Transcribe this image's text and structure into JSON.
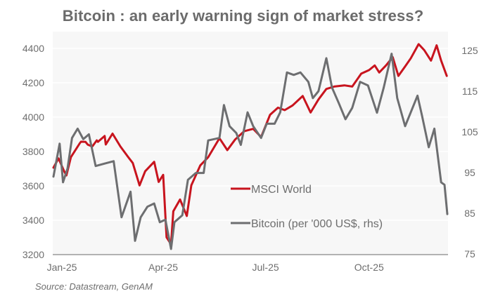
{
  "chart_data": {
    "type": "line",
    "title": "Bitcoin : an early warning sign of market stress?",
    "source": "Source: Datastream, GenAM",
    "xlabel": "",
    "ylabel_left": "",
    "ylabel_right": "",
    "x_ticks": [
      "Jan-25",
      "Apr-25",
      "Jul-25",
      "Oct-25"
    ],
    "x_tick_dates": [
      "2025-01-01",
      "2025-04-01",
      "2025-07-01",
      "2025-10-01"
    ],
    "xlim": [
      "2024-12-24",
      "2025-12-10"
    ],
    "y_left": {
      "ylim": [
        3200,
        4500
      ],
      "ticks": [
        "3200",
        "3400",
        "3600",
        "3800",
        "4000",
        "4200",
        "4400"
      ],
      "tick_values": [
        3200,
        3400,
        3600,
        3800,
        4000,
        4200,
        4400
      ]
    },
    "y_right": {
      "ylim": [
        75,
        127
      ],
      "ticks": [
        "75",
        "85",
        "95",
        "105",
        "115",
        "125"
      ],
      "tick_values": [
        75,
        85,
        95,
        105,
        115,
        125
      ]
    },
    "grid": true,
    "legend": {
      "placement": "center-right-bottom",
      "entries": [
        "MSCI World",
        "Bitcoin (per '000 US$, rhs)"
      ]
    },
    "series": [
      {
        "name": "MSCI World",
        "axis": "left",
        "color": "#c8141e",
        "points": [
          [
            "2024-12-24",
            3706
          ],
          [
            "2024-12-29",
            3760
          ],
          [
            "2025-01-03",
            3685
          ],
          [
            "2025-01-05",
            3661
          ],
          [
            "2025-01-09",
            3767
          ],
          [
            "2025-01-17",
            3849
          ],
          [
            "2025-01-18",
            3857
          ],
          [
            "2025-01-22",
            3856
          ],
          [
            "2025-01-24",
            3840
          ],
          [
            "2025-01-28",
            3829
          ],
          [
            "2025-02-01",
            3865
          ],
          [
            "2025-02-02",
            3856
          ],
          [
            "2025-02-08",
            3890
          ],
          [
            "2025-02-09",
            3841
          ],
          [
            "2025-02-15",
            3904
          ],
          [
            "2025-02-22",
            3829
          ],
          [
            "2025-03-01",
            3767
          ],
          [
            "2025-03-05",
            3733
          ],
          [
            "2025-03-11",
            3603
          ],
          [
            "2025-03-16",
            3685
          ],
          [
            "2025-03-24",
            3740
          ],
          [
            "2025-03-28",
            3623
          ],
          [
            "2025-04-01",
            3664
          ],
          [
            "2025-04-04",
            3301
          ],
          [
            "2025-04-08",
            3260
          ],
          [
            "2025-04-10",
            3452
          ],
          [
            "2025-04-16",
            3521
          ],
          [
            "2025-04-22",
            3425
          ],
          [
            "2025-04-26",
            3603
          ],
          [
            "2025-05-04",
            3719
          ],
          [
            "2025-05-11",
            3767
          ],
          [
            "2025-05-21",
            3877
          ],
          [
            "2025-05-28",
            3808
          ],
          [
            "2025-06-04",
            3870
          ],
          [
            "2025-06-12",
            3918
          ],
          [
            "2025-06-20",
            3932
          ],
          [
            "2025-06-27",
            3884
          ],
          [
            "2025-07-05",
            4014
          ],
          [
            "2025-07-12",
            4055
          ],
          [
            "2025-07-18",
            4041
          ],
          [
            "2025-07-25",
            4068
          ],
          [
            "2025-08-03",
            4123
          ],
          [
            "2025-08-10",
            4027
          ],
          [
            "2025-08-17",
            4103
          ],
          [
            "2025-08-24",
            4164
          ],
          [
            "2025-08-31",
            4178
          ],
          [
            "2025-09-09",
            4185
          ],
          [
            "2025-09-16",
            4178
          ],
          [
            "2025-09-24",
            4253
          ],
          [
            "2025-10-01",
            4274
          ],
          [
            "2025-10-06",
            4301
          ],
          [
            "2025-10-10",
            4260
          ],
          [
            "2025-10-16",
            4301
          ],
          [
            "2025-10-22",
            4349
          ],
          [
            "2025-10-27",
            4240
          ],
          [
            "2025-11-02",
            4295
          ],
          [
            "2025-11-07",
            4342
          ],
          [
            "2025-11-14",
            4425
          ],
          [
            "2025-11-19",
            4390
          ],
          [
            "2025-11-25",
            4329
          ],
          [
            "2025-11-30",
            4418
          ],
          [
            "2025-12-04",
            4329
          ],
          [
            "2025-12-09",
            4240
          ]
        ]
      },
      {
        "name": "Bitcoin (per '000 US$, rhs)",
        "axis": "right",
        "color": "#6d6e70",
        "points": [
          [
            "2024-12-24",
            94.0
          ],
          [
            "2024-12-30",
            102.1
          ],
          [
            "2025-01-02",
            92.6
          ],
          [
            "2025-01-06",
            96.0
          ],
          [
            "2025-01-10",
            103.5
          ],
          [
            "2025-01-15",
            105.8
          ],
          [
            "2025-01-20",
            103.2
          ],
          [
            "2025-01-25",
            104.4
          ],
          [
            "2025-01-31",
            96.6
          ],
          [
            "2025-02-08",
            97.2
          ],
          [
            "2025-02-16",
            97.8
          ],
          [
            "2025-02-23",
            84.0
          ],
          [
            "2025-03-03",
            90.3
          ],
          [
            "2025-03-07",
            78.2
          ],
          [
            "2025-03-12",
            84.0
          ],
          [
            "2025-03-18",
            86.6
          ],
          [
            "2025-03-24",
            87.4
          ],
          [
            "2025-03-29",
            82.8
          ],
          [
            "2025-04-03",
            83.4
          ],
          [
            "2025-04-08",
            76.2
          ],
          [
            "2025-04-11",
            82.8
          ],
          [
            "2025-04-18",
            84.5
          ],
          [
            "2025-04-23",
            93.2
          ],
          [
            "2025-04-30",
            94.9
          ],
          [
            "2025-05-07",
            94.9
          ],
          [
            "2025-05-11",
            102.9
          ],
          [
            "2025-05-21",
            103.5
          ],
          [
            "2025-05-25",
            111.6
          ],
          [
            "2025-05-30",
            106.4
          ],
          [
            "2025-06-05",
            104.7
          ],
          [
            "2025-06-09",
            101.8
          ],
          [
            "2025-06-15",
            109.8
          ],
          [
            "2025-06-20",
            106.4
          ],
          [
            "2025-06-27",
            103.5
          ],
          [
            "2025-07-02",
            107.0
          ],
          [
            "2025-07-09",
            107.0
          ],
          [
            "2025-07-14",
            109.8
          ],
          [
            "2025-07-20",
            119.6
          ],
          [
            "2025-07-26",
            119.0
          ],
          [
            "2025-08-01",
            119.6
          ],
          [
            "2025-08-08",
            117.3
          ],
          [
            "2025-08-12",
            113.3
          ],
          [
            "2025-08-17",
            115.0
          ],
          [
            "2025-08-24",
            123.1
          ],
          [
            "2025-08-29",
            115.9
          ],
          [
            "2025-09-04",
            112.1
          ],
          [
            "2025-09-10",
            108.1
          ],
          [
            "2025-09-16",
            110.9
          ],
          [
            "2025-09-23",
            117.3
          ],
          [
            "2025-09-30",
            116.4
          ],
          [
            "2025-10-08",
            109.7
          ],
          [
            "2025-10-14",
            115.9
          ],
          [
            "2025-10-21",
            124.2
          ],
          [
            "2025-10-26",
            113.3
          ],
          [
            "2025-11-02",
            106.4
          ],
          [
            "2025-11-07",
            109.8
          ],
          [
            "2025-11-13",
            113.9
          ],
          [
            "2025-11-17",
            109.0
          ],
          [
            "2025-11-23",
            101.2
          ],
          [
            "2025-11-28",
            105.8
          ],
          [
            "2025-12-04",
            92.6
          ],
          [
            "2025-12-07",
            92.0
          ],
          [
            "2025-12-10",
            84.8
          ]
        ]
      }
    ]
  },
  "colors": {
    "plot_background": "#f7f7f7",
    "grid": "#ffffff",
    "axis_line": "#9a9a9a",
    "text": "#6e6e6e"
  }
}
